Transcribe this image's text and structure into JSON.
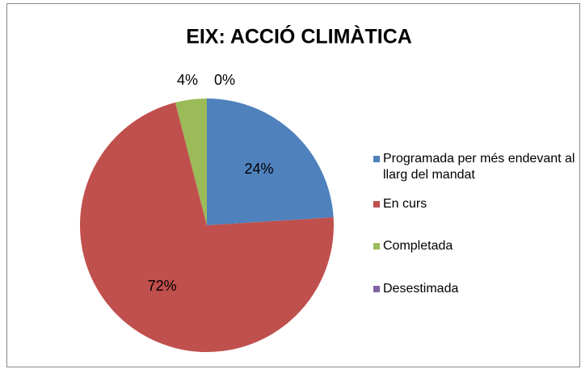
{
  "chart_data": {
    "type": "pie",
    "title": "EIX: ACCIÓ CLIMÀTICA",
    "categories": [
      "Programada per més endevant al llarg del mandat",
      "En curs",
      "Completada",
      "Desestimada"
    ],
    "values": [
      24,
      72,
      4,
      0
    ],
    "value_labels": [
      "24%",
      "72%",
      "4%",
      "0%"
    ],
    "colors": [
      "#4f81bd",
      "#c0504d",
      "#9bbb59",
      "#8064a2"
    ],
    "legend": "right"
  }
}
